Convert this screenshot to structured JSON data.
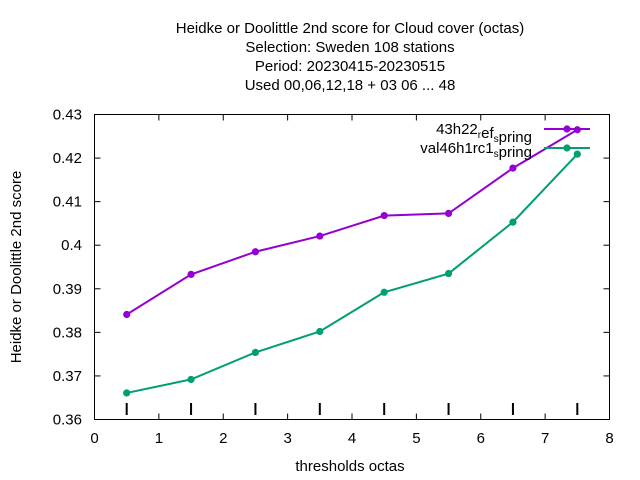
{
  "chart_data": {
    "type": "line",
    "title_lines": [
      "Heidke or Doolittle 2nd score  for Cloud cover (octas)",
      "Selection: Sweden    108 stations",
      "Period: 20230415-20230515",
      "Used  00,06,12,18  + 03 06 ... 48"
    ],
    "xlabel": "thresholds octas",
    "ylabel": "Heidke or Doolittle 2nd score",
    "xlim": [
      0,
      8
    ],
    "ylim": [
      0.36,
      0.43
    ],
    "xticks": [
      0,
      1,
      2,
      3,
      4,
      5,
      6,
      7,
      8
    ],
    "yticks": [
      0.36,
      0.37,
      0.38,
      0.39,
      0.4,
      0.41,
      0.42,
      0.43
    ],
    "ytick_labels": [
      "0.36",
      "0.37",
      "0.38",
      "0.39",
      "0.4",
      "0.41",
      "0.42",
      "0.43"
    ],
    "x": [
      0.5,
      1.5,
      2.5,
      3.5,
      4.5,
      5.5,
      6.5,
      7.5
    ],
    "grid": false,
    "legend_position": "top-right",
    "series": [
      {
        "name": "43h22_ref_spring",
        "legend_main": "43h22",
        "legend_sub1": "r",
        "legend_mid": "ef",
        "legend_sub2": "s",
        "legend_tail": "pring",
        "color": "#9400d3",
        "values": [
          0.3841,
          0.3933,
          0.3985,
          0.4021,
          0.4068,
          0.4073,
          0.4177,
          0.4265
        ]
      },
      {
        "name": "val46h1rc1_spring",
        "legend_main": "val46h1rc1",
        "legend_sub1": "",
        "legend_mid": "",
        "legend_sub2": "s",
        "legend_tail": "pring",
        "color": "#009e73",
        "values": [
          0.3661,
          0.3692,
          0.3754,
          0.3802,
          0.3892,
          0.3935,
          0.4053,
          0.4209
        ]
      }
    ]
  }
}
